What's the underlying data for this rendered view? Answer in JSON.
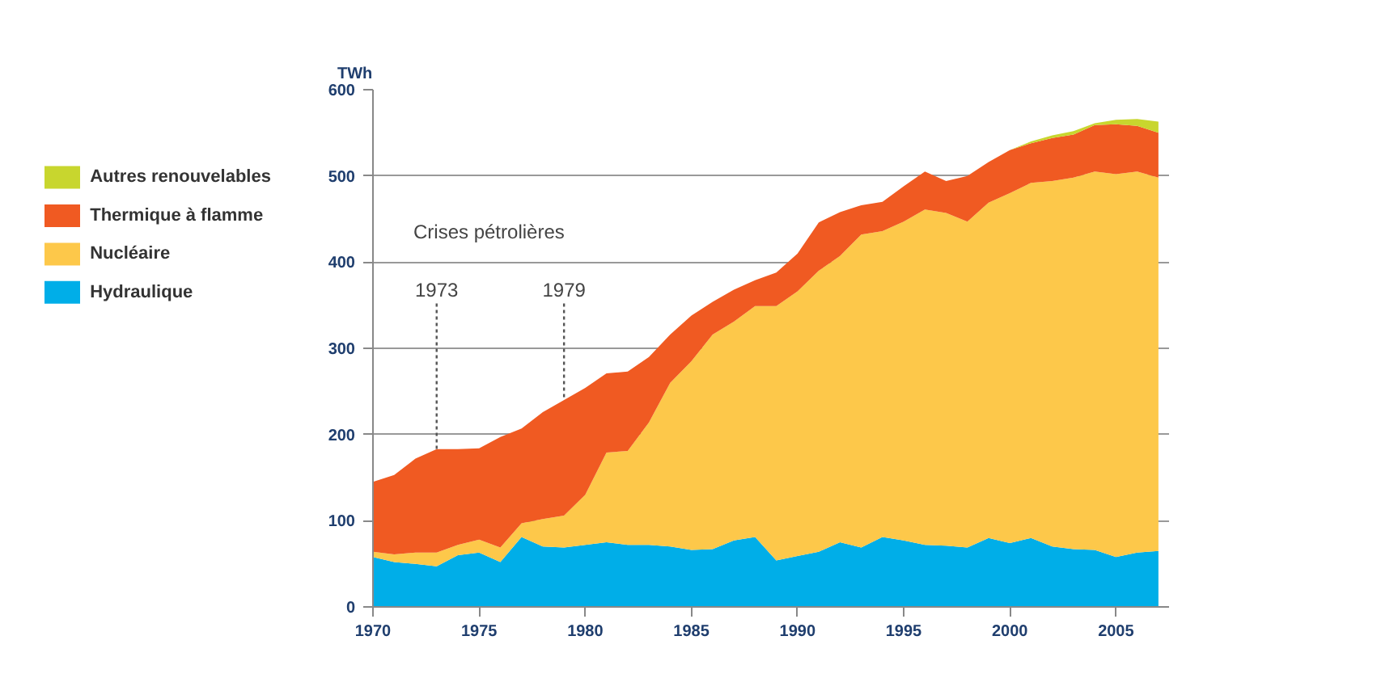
{
  "chart_data": {
    "type": "area",
    "stacked": true,
    "ylabel": "TWh",
    "x": [
      1970,
      1971,
      1972,
      1973,
      1974,
      1975,
      1976,
      1977,
      1978,
      1979,
      1980,
      1981,
      1982,
      1983,
      1984,
      1985,
      1986,
      1987,
      1988,
      1989,
      1990,
      1991,
      1992,
      1993,
      1994,
      1995,
      1996,
      1997,
      1998,
      1999,
      2000,
      2001,
      2002,
      2003,
      2004,
      2005,
      2006,
      2007
    ],
    "series": [
      {
        "name": "Hydraulique",
        "color": "#00aee8",
        "values": [
          58,
          52,
          50,
          47,
          60,
          63,
          52,
          81,
          70,
          69,
          72,
          75,
          72,
          72,
          70,
          66,
          67,
          77,
          81,
          54,
          59,
          64,
          75,
          69,
          81,
          77,
          72,
          71,
          69,
          80,
          74,
          80,
          70,
          67,
          66,
          58,
          63,
          65
        ]
      },
      {
        "name": "Nucléaire",
        "color": "#fdc84a",
        "values": [
          6,
          9,
          13,
          16,
          12,
          15,
          17,
          16,
          32,
          37,
          58,
          104,
          109,
          142,
          190,
          219,
          249,
          254,
          268,
          295,
          307,
          326,
          332,
          363,
          355,
          370,
          389,
          386,
          378,
          389,
          406,
          412,
          424,
          431,
          439,
          444,
          442,
          433
        ]
      },
      {
        "name": "Thermique à flamme",
        "color": "#f05a22",
        "values": [
          81,
          92,
          109,
          120,
          111,
          106,
          128,
          110,
          124,
          134,
          124,
          92,
          92,
          76,
          56,
          53,
          38,
          37,
          30,
          39,
          44,
          56,
          51,
          34,
          34,
          41,
          44,
          37,
          53,
          47,
          50,
          46,
          50,
          50,
          54,
          58,
          53,
          52
        ]
      },
      {
        "name": "Autres renouvelables",
        "color": "#c8d62e",
        "values": [
          0,
          0,
          0,
          0,
          0,
          0,
          0,
          0,
          0,
          0,
          0,
          0,
          0,
          0,
          0,
          0,
          0,
          0,
          0,
          0,
          0,
          0,
          0,
          0,
          0,
          0,
          0,
          0,
          0,
          0,
          0,
          2,
          3,
          4,
          2,
          5,
          8,
          13
        ]
      }
    ],
    "xlim": [
      1970,
      2007.5
    ],
    "xticks": [
      1970,
      1975,
      1980,
      1985,
      1990,
      1995,
      2000,
      2005
    ],
    "ylim": [
      0,
      600
    ],
    "yticks": [
      0,
      100,
      200,
      300,
      400,
      500,
      600
    ],
    "grid": "y",
    "legend": "top left",
    "ref_lines": [
      {
        "axis": "x",
        "value": 1973,
        "label": "1973",
        "line_style": "dotted",
        "color": "#555555"
      },
      {
        "axis": "x",
        "value": 1979,
        "label": "1979",
        "line_style": "dotted",
        "color": "#555555"
      }
    ],
    "annotations": [
      "Crises pétrolières"
    ]
  }
}
